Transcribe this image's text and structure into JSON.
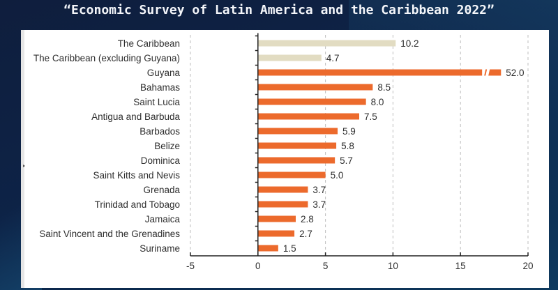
{
  "page": {
    "title": "“Economic Survey of Latin America and the Caribbean 2022”"
  },
  "colors": {
    "aggregate_bar": "#e2dcc2",
    "country_bar": "#ec6a2c",
    "gridline": "#bdbdbd",
    "axis": "#222222",
    "text": "#2e2e2e"
  },
  "chart_data": {
    "type": "bar",
    "orientation": "horizontal",
    "title": "Economic Survey of Latin America and the Caribbean 2022",
    "xlabel": "",
    "ylabel": "",
    "xlim": [
      -5,
      20
    ],
    "xticks": [
      -5,
      0,
      5,
      10,
      15,
      20
    ],
    "xtick_labels": [
      "-5",
      "0",
      "5",
      "10",
      "15",
      "20"
    ],
    "grid": "vertical dashed",
    "categories": [
      "The Caribbean",
      "The Caribbean (excluding Guyana)",
      "Guyana",
      "Bahamas",
      "Saint Lucia",
      "Antigua and Barbuda",
      "Barbados",
      "Belize",
      "Dominica",
      "Saint Kitts and Nevis",
      "Grenada",
      "Trinidad and Tobago",
      "Jamaica",
      "Saint Vincent and the Grenadines",
      "Suriname"
    ],
    "values": [
      10.2,
      4.7,
      52.0,
      8.5,
      8.0,
      7.5,
      5.9,
      5.8,
      5.7,
      5.0,
      3.7,
      3.7,
      2.8,
      2.7,
      1.5
    ],
    "value_labels": [
      "10.2",
      "4.7",
      "52.0",
      "8.5",
      "8.0",
      "7.5",
      "5.9",
      "5.8",
      "5.7",
      "5.0",
      "3.7",
      "3.7",
      "2.8",
      "2.7",
      "1.5"
    ],
    "bar_groups": [
      "aggregate",
      "aggregate",
      "country",
      "country",
      "country",
      "country",
      "country",
      "country",
      "country",
      "country",
      "country",
      "country",
      "country",
      "country",
      "country"
    ],
    "broken_axis_bars": [
      "Guyana"
    ],
    "legend": "none"
  }
}
